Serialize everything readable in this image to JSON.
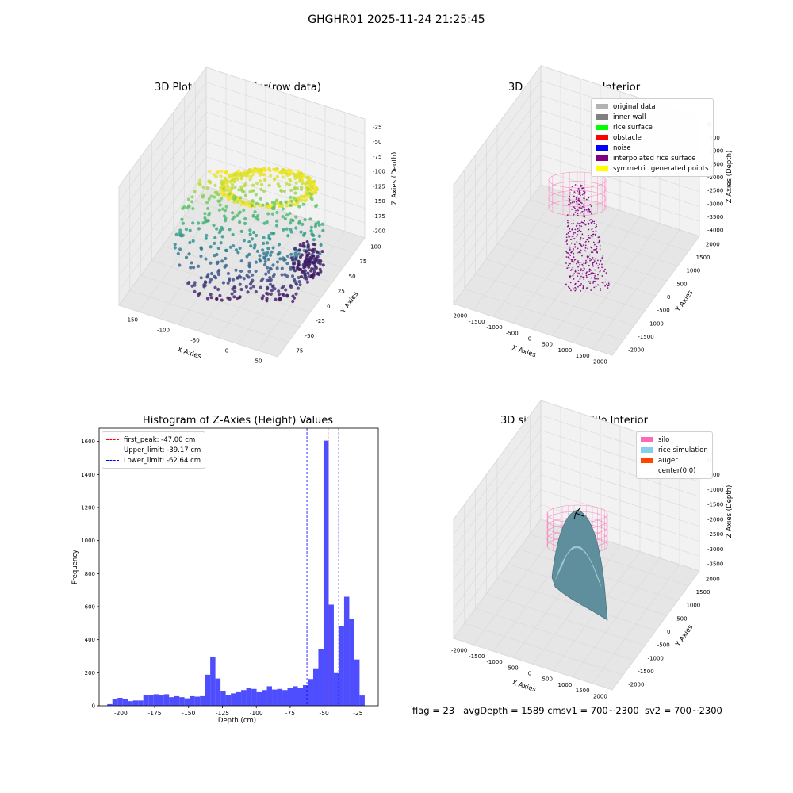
{
  "suptitle": "GHGHR01 2025-11-24 21:25:45",
  "panels": {
    "raw": {
      "title": "3D Plot of Silo Interior(row data)",
      "x_label": "X Axies",
      "y_label": "Y Axies",
      "z_label": "Z Axies (Depth)",
      "x_ticks": [
        "-150",
        "-100",
        "-50",
        "0",
        "50"
      ],
      "y_ticks": [
        "100",
        "75",
        "50",
        "25",
        "0",
        "-25",
        "-50",
        "-75"
      ],
      "z_ticks": [
        "-25",
        "-50",
        "-75",
        "-100",
        "-125",
        "-150",
        "-175",
        "-200"
      ]
    },
    "classify": {
      "title": "3D classify of Silo Interior",
      "x_label": "X Axies",
      "y_label": "Y Axies",
      "z_label": "Z Axies (Depth)",
      "x_ticks": [
        "-2000",
        "-1500",
        "-1000",
        "-500",
        "0",
        "500",
        "1000",
        "1500",
        "2000"
      ],
      "y_ticks": [
        "2000",
        "1500",
        "1000",
        "500",
        "0",
        "-500",
        "-1000",
        "-1500",
        "-2000"
      ],
      "z_ticks": [
        "0",
        "-500",
        "-1000",
        "-1500",
        "-2000",
        "-2500",
        "-3000",
        "-3500",
        "-4000"
      ],
      "legend": [
        {
          "label": "original data",
          "color": "#b3b3b3"
        },
        {
          "label": "inner wall",
          "color": "#808080"
        },
        {
          "label": "rice surface",
          "color": "#00ff00"
        },
        {
          "label": "obstacle",
          "color": "#ff0000"
        },
        {
          "label": "noise",
          "color": "#0000ff"
        },
        {
          "label": "interpolated rice surface",
          "color": "#800080"
        },
        {
          "label": "symmetric generated points",
          "color": "#ffff00"
        }
      ]
    },
    "simulation": {
      "title": "3D simulation of Silo Interior",
      "x_label": "X Axies",
      "y_label": "Y Axies",
      "z_label": "Z Axies (Depth)",
      "x_ticks": [
        "-2000",
        "-1500",
        "-1000",
        "-500",
        "0",
        "500",
        "1000",
        "1500",
        "2000"
      ],
      "y_ticks": [
        "2000",
        "1500",
        "1000",
        "500",
        "0",
        "-500",
        "-1000",
        "-1500",
        "-2000"
      ],
      "z_ticks": [
        "0",
        "-500",
        "-1000",
        "-1500",
        "-2000",
        "-2500",
        "-3000",
        "-3500"
      ],
      "legend": [
        {
          "label": "silo",
          "color": "#ff69b4"
        },
        {
          "label": "rice simulation",
          "color": "#87ceeb"
        },
        {
          "label": "auger",
          "color": "#ff4500"
        },
        {
          "label": "center(0,0)",
          "color": "#ffffff"
        }
      ]
    }
  },
  "chart_data": [
    {
      "type": "scatter",
      "title": "3D Plot of Silo Interior(row data)",
      "xlabel": "X Axies",
      "ylabel": "Y Axies",
      "zlabel": "Z Axies (Depth)",
      "xlim": [
        -175,
        75
      ],
      "ylim": [
        -85,
        110
      ],
      "zlim": [
        -215,
        -15
      ],
      "colormap": "viridis"
    },
    {
      "type": "scatter",
      "title": "3D classify of Silo Interior",
      "xlabel": "X Axies",
      "ylabel": "Y Axies",
      "zlabel": "Z Axies (Depth)",
      "xlim": [
        -2000,
        2000
      ],
      "ylim": [
        -2000,
        2000
      ],
      "zlim": [
        -4000,
        0
      ]
    },
    {
      "type": "bar",
      "title": "Histogram of Z-Axies (Height) Values",
      "xlabel": "Depth (cm)",
      "ylabel": "Frequency",
      "bar_color": "#4444ff",
      "x_ticks": [
        -200,
        -175,
        -150,
        -125,
        -100,
        -75,
        -50,
        -25
      ],
      "y_ticks": [
        0,
        200,
        400,
        600,
        800,
        1000,
        1200,
        1400,
        1600
      ],
      "xlim": [
        -216,
        -10
      ],
      "ylim": [
        0,
        1680
      ],
      "bin_start": -210,
      "bin_width": 3.8,
      "values": [
        10,
        42,
        48,
        42,
        28,
        32,
        32,
        65,
        65,
        70,
        65,
        70,
        52,
        58,
        52,
        45,
        58,
        55,
        58,
        188,
        295,
        165,
        88,
        65,
        75,
        82,
        95,
        108,
        102,
        82,
        95,
        118,
        98,
        102,
        95,
        108,
        118,
        108,
        125,
        162,
        222,
        345,
        1605,
        612,
        198,
        480,
        660,
        525,
        280,
        62
      ],
      "lines": [
        {
          "label": "first_peak: -47.00 cm",
          "x": -47.0,
          "color": "#ff0000"
        },
        {
          "label": "Upper_limit: -39.17 cm",
          "x": -39.17,
          "color": "#0000ff"
        },
        {
          "label": "Lower_limit: -62.64 cm",
          "x": -62.64,
          "color": "#0000ff"
        }
      ]
    },
    {
      "type": "area",
      "title": "3D simulation of Silo Interior",
      "xlabel": "X Axies",
      "ylabel": "Y Axies",
      "zlabel": "Z Axies (Depth)",
      "xlim": [
        -2000,
        2000
      ],
      "ylim": [
        -2000,
        2000
      ],
      "zlim": [
        -3700,
        300
      ]
    }
  ],
  "status": {
    "flag": "flag = 23",
    "avg_depth": "avgDepth = 1589 cm",
    "sv1": "sv1 = 700~2300",
    "sv2": "sv2 = 700~2300"
  }
}
